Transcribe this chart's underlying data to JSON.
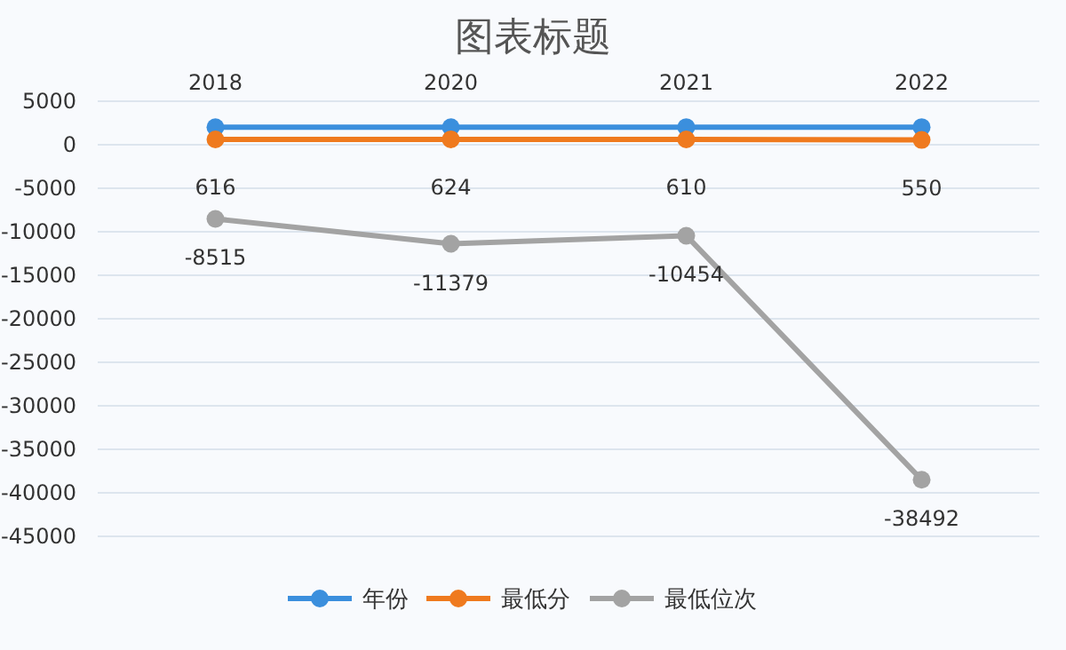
{
  "chart_data": {
    "type": "line",
    "title": "图表标题",
    "categories": [
      null,
      null,
      null,
      null
    ],
    "series": [
      {
        "name": "年份",
        "color": "#3b8fdd",
        "values": [
          2018,
          2020,
          2021,
          2022
        ]
      },
      {
        "name": "最低分",
        "color": "#ef7a1e",
        "values": [
          616,
          624,
          610,
          550
        ]
      },
      {
        "name": "最低位次",
        "color": "#a3a3a3",
        "values": [
          -8515,
          -11379,
          -10454,
          -38492
        ]
      }
    ],
    "ylim": [
      -45000,
      5000
    ],
    "yticks": [
      5000,
      0,
      -5000,
      -10000,
      -15000,
      -20000,
      -25000,
      -30000,
      -35000,
      -40000,
      -45000
    ],
    "grid": "y",
    "legend": "bottom",
    "marker": "circle",
    "line_style": "solid",
    "data_labels": true,
    "tick_labels": "y"
  }
}
